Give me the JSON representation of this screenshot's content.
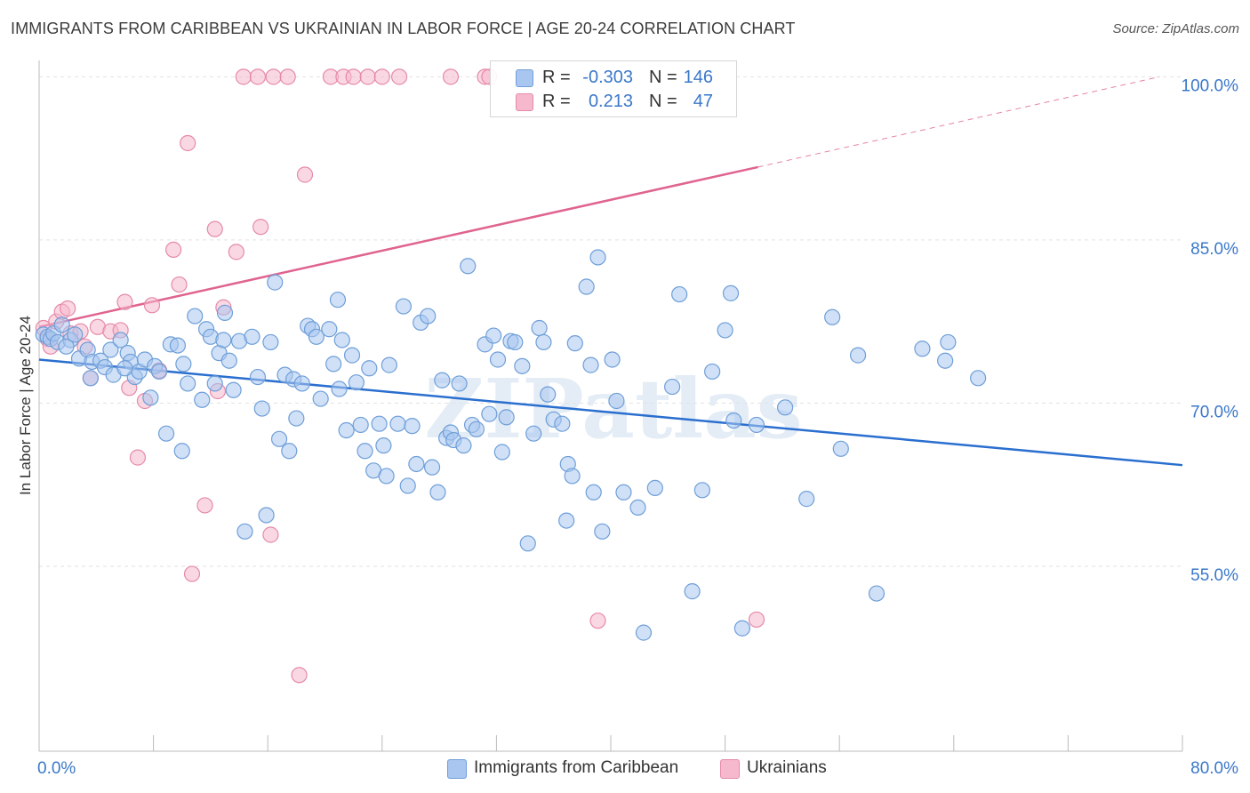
{
  "header": {
    "title": "IMMIGRANTS FROM CARIBBEAN VS UKRAINIAN IN LABOR FORCE | AGE 20-24 CORRELATION CHART",
    "source": "Source: ZipAtlas.com"
  },
  "watermark": "ZIPatlas",
  "legend": {
    "rows": [
      {
        "r_label": "R =",
        "r_value": "-0.303",
        "n_label": "N =",
        "n_value": "146"
      },
      {
        "r_label": "R =",
        "r_value": "0.213",
        "n_label": "N =",
        "n_value": "47"
      }
    ]
  },
  "bottom_legend": {
    "items": [
      {
        "label": "Immigrants from Caribbean"
      },
      {
        "label": "Ukrainians"
      }
    ]
  },
  "colors": {
    "blue_fill": "#a8c6f0",
    "blue_stroke": "#6f9fd8",
    "blue_line": "#2a6fcf",
    "pink_fill": "#f6b8cc",
    "pink_stroke": "#e58aa8",
    "pink_line": "#e0638f",
    "tick_text": "#3a78c9",
    "grid": "#e2e2e2"
  },
  "chart_data": {
    "type": "scatter",
    "title": "IMMIGRANTS FROM CARIBBEAN VS UKRAINIAN IN LABOR FORCE | AGE 20-24 CORRELATION CHART",
    "xlabel": "",
    "ylabel": "In Labor Force | Age 20-24",
    "xlim": [
      0,
      80
    ],
    "ylim": [
      38,
      101.5
    ],
    "x_tick_labels": [
      "0.0%",
      "80.0%"
    ],
    "y_ticks": [
      55,
      70,
      85,
      100
    ],
    "y_tick_labels": [
      "55.0%",
      "70.0%",
      "85.0%",
      "100.0%"
    ],
    "grid": true,
    "legend_position": "top-center",
    "series": [
      {
        "name": "Immigrants from Caribbean",
        "trend": {
          "x0": 0,
          "y0": 74.0,
          "x1": 80,
          "y1": 64.3
        },
        "points": [
          [
            0.3,
            76.3
          ],
          [
            0.6,
            76.1
          ],
          [
            0.8,
            75.9
          ],
          [
            1.0,
            76.4
          ],
          [
            1.3,
            75.6
          ],
          [
            1.6,
            77.2
          ],
          [
            2.2,
            75.8
          ],
          [
            2.8,
            74.1
          ],
          [
            3.4,
            74.9
          ],
          [
            3.7,
            73.8
          ],
          [
            3.6,
            72.3
          ],
          [
            4.3,
            73.9
          ],
          [
            4.6,
            73.3
          ],
          [
            5.0,
            74.9
          ],
          [
            5.2,
            72.6
          ],
          [
            5.7,
            75.8
          ],
          [
            6.2,
            74.6
          ],
          [
            6.4,
            73.8
          ],
          [
            6.7,
            72.4
          ],
          [
            7.0,
            72.9
          ],
          [
            7.4,
            74.0
          ],
          [
            7.8,
            70.5
          ],
          [
            8.1,
            73.4
          ],
          [
            8.4,
            72.9
          ],
          [
            8.9,
            67.2
          ],
          [
            9.2,
            75.4
          ],
          [
            9.7,
            75.3
          ],
          [
            10.0,
            65.6
          ],
          [
            10.1,
            73.6
          ],
          [
            10.4,
            71.8
          ],
          [
            10.9,
            78.0
          ],
          [
            11.4,
            70.3
          ],
          [
            11.7,
            76.8
          ],
          [
            12.0,
            76.1
          ],
          [
            12.3,
            71.8
          ],
          [
            12.6,
            74.6
          ],
          [
            13.0,
            78.3
          ],
          [
            13.3,
            73.9
          ],
          [
            13.6,
            71.2
          ],
          [
            14.0,
            75.7
          ],
          [
            14.4,
            58.2
          ],
          [
            14.9,
            76.1
          ],
          [
            15.3,
            72.4
          ],
          [
            15.6,
            69.5
          ],
          [
            15.9,
            59.7
          ],
          [
            16.2,
            75.6
          ],
          [
            16.5,
            81.1
          ],
          [
            16.8,
            66.7
          ],
          [
            17.2,
            72.6
          ],
          [
            17.5,
            65.6
          ],
          [
            17.8,
            72.2
          ],
          [
            18.0,
            68.6
          ],
          [
            18.4,
            71.8
          ],
          [
            18.8,
            77.1
          ],
          [
            19.1,
            76.8
          ],
          [
            19.4,
            76.1
          ],
          [
            19.7,
            70.4
          ],
          [
            20.3,
            76.8
          ],
          [
            20.6,
            73.6
          ],
          [
            20.9,
            79.5
          ],
          [
            21.2,
            75.8
          ],
          [
            21.5,
            67.5
          ],
          [
            21.9,
            74.4
          ],
          [
            22.2,
            71.9
          ],
          [
            22.5,
            68.0
          ],
          [
            22.8,
            65.6
          ],
          [
            23.1,
            73.2
          ],
          [
            23.4,
            63.8
          ],
          [
            23.8,
            68.1
          ],
          [
            24.1,
            66.1
          ],
          [
            24.3,
            63.3
          ],
          [
            24.5,
            73.5
          ],
          [
            25.1,
            68.1
          ],
          [
            25.5,
            78.9
          ],
          [
            25.8,
            62.4
          ],
          [
            26.1,
            67.9
          ],
          [
            26.4,
            64.4
          ],
          [
            26.7,
            77.4
          ],
          [
            27.2,
            78.0
          ],
          [
            27.5,
            64.1
          ],
          [
            27.9,
            61.8
          ],
          [
            28.2,
            72.1
          ],
          [
            28.5,
            66.8
          ],
          [
            28.8,
            67.3
          ],
          [
            29.0,
            66.6
          ],
          [
            29.4,
            71.8
          ],
          [
            29.7,
            66.1
          ],
          [
            30.0,
            82.6
          ],
          [
            30.3,
            68.0
          ],
          [
            30.6,
            67.6
          ],
          [
            31.2,
            75.4
          ],
          [
            31.5,
            69.0
          ],
          [
            31.8,
            76.2
          ],
          [
            32.1,
            74.0
          ],
          [
            32.4,
            65.5
          ],
          [
            32.7,
            68.7
          ],
          [
            33.0,
            75.7
          ],
          [
            33.3,
            75.6
          ],
          [
            33.8,
            73.4
          ],
          [
            34.2,
            57.1
          ],
          [
            34.6,
            67.2
          ],
          [
            35.0,
            76.9
          ],
          [
            35.3,
            75.6
          ],
          [
            35.6,
            70.8
          ],
          [
            36.0,
            68.5
          ],
          [
            36.6,
            68.1
          ],
          [
            37.0,
            64.4
          ],
          [
            37.3,
            63.3
          ],
          [
            36.9,
            59.2
          ],
          [
            37.5,
            75.5
          ],
          [
            38.6,
            73.5
          ],
          [
            38.3,
            80.7
          ],
          [
            39.1,
            83.4
          ],
          [
            38.8,
            61.8
          ],
          [
            39.4,
            58.2
          ],
          [
            40.1,
            74.0
          ],
          [
            40.4,
            70.2
          ],
          [
            40.9,
            61.8
          ],
          [
            41.9,
            60.4
          ],
          [
            42.3,
            48.9
          ],
          [
            43.1,
            62.2
          ],
          [
            44.3,
            71.5
          ],
          [
            44.8,
            80.0
          ],
          [
            45.7,
            52.7
          ],
          [
            46.4,
            62.0
          ],
          [
            47.1,
            72.9
          ],
          [
            48.0,
            76.7
          ],
          [
            48.4,
            80.1
          ],
          [
            48.6,
            68.4
          ],
          [
            49.2,
            49.3
          ],
          [
            50.2,
            68.0
          ],
          [
            52.2,
            69.6
          ],
          [
            53.7,
            61.2
          ],
          [
            55.5,
            77.9
          ],
          [
            56.1,
            65.8
          ],
          [
            57.3,
            74.4
          ],
          [
            58.6,
            52.5
          ],
          [
            61.8,
            75.0
          ],
          [
            63.4,
            73.9
          ],
          [
            63.6,
            75.6
          ],
          [
            65.7,
            72.3
          ],
          [
            1.9,
            75.2
          ],
          [
            2.5,
            76.3
          ],
          [
            6.0,
            73.2
          ],
          [
            12.9,
            75.8
          ],
          [
            21.0,
            71.3
          ]
        ]
      },
      {
        "name": "Ukrainians",
        "trend": {
          "x0": 0,
          "y0": 77.0,
          "x1": 50.3,
          "y1": 91.7
        },
        "trend_dashed_to": {
          "x": 78.4,
          "y": 100.0
        },
        "points": [
          [
            0.3,
            76.9
          ],
          [
            0.6,
            75.9
          ],
          [
            0.8,
            75.2
          ],
          [
            1.2,
            77.5
          ],
          [
            1.6,
            78.4
          ],
          [
            2.0,
            78.7
          ],
          [
            2.2,
            76.4
          ],
          [
            2.9,
            76.6
          ],
          [
            3.2,
            75.2
          ],
          [
            3.6,
            72.3
          ],
          [
            4.1,
            77.0
          ],
          [
            5.0,
            76.6
          ],
          [
            5.7,
            76.7
          ],
          [
            6.0,
            79.3
          ],
          [
            6.3,
            71.4
          ],
          [
            6.9,
            65.0
          ],
          [
            7.4,
            70.2
          ],
          [
            7.9,
            79.0
          ],
          [
            8.4,
            73.0
          ],
          [
            9.4,
            84.1
          ],
          [
            9.8,
            80.9
          ],
          [
            10.4,
            93.9
          ],
          [
            10.7,
            54.3
          ],
          [
            11.6,
            60.6
          ],
          [
            12.3,
            86.0
          ],
          [
            12.5,
            71.1
          ],
          [
            12.9,
            78.8
          ],
          [
            13.8,
            83.9
          ],
          [
            14.3,
            100.0
          ],
          [
            15.3,
            100.0
          ],
          [
            15.5,
            86.2
          ],
          [
            16.2,
            57.9
          ],
          [
            16.4,
            100.0
          ],
          [
            17.4,
            100.0
          ],
          [
            18.2,
            45.0
          ],
          [
            18.6,
            91.0
          ],
          [
            20.4,
            100.0
          ],
          [
            21.3,
            100.0
          ],
          [
            22.0,
            100.0
          ],
          [
            23.0,
            100.0
          ],
          [
            24.0,
            100.0
          ],
          [
            25.2,
            100.0
          ],
          [
            28.8,
            100.0
          ],
          [
            31.2,
            100.0
          ],
          [
            31.5,
            100.0
          ],
          [
            39.1,
            50.0
          ],
          [
            50.2,
            50.1
          ]
        ]
      }
    ]
  }
}
